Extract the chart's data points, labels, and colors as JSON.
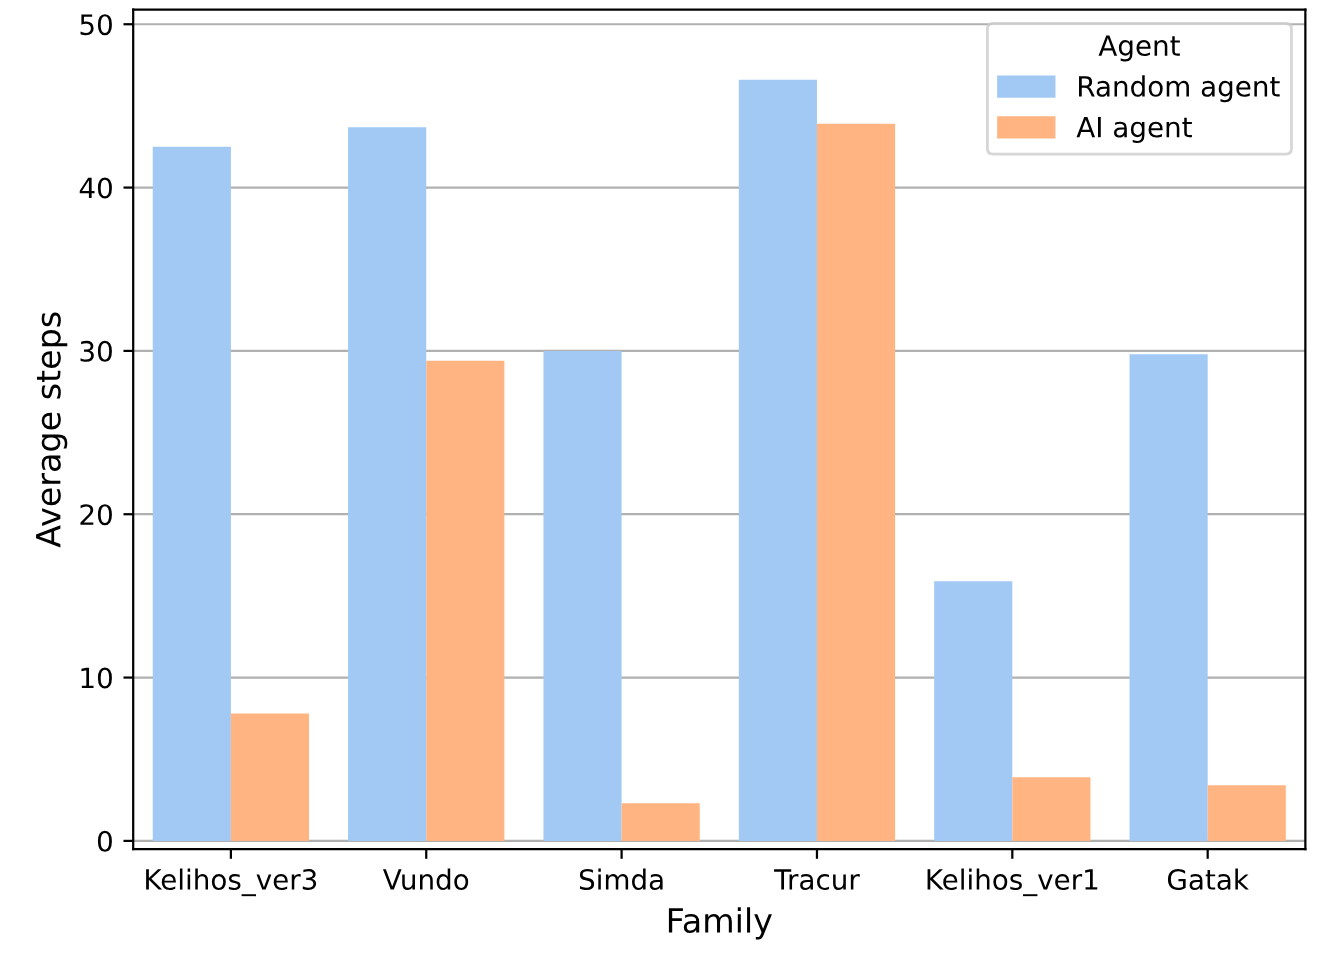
{
  "chart_data": {
    "type": "bar",
    "xlabel": "Family",
    "ylabel": "Average steps",
    "legend_title": "Agent",
    "categories": [
      "Kelihos_ver3",
      "Vundo",
      "Simda",
      "Tracur",
      "Kelihos_ver1",
      "Gatak"
    ],
    "series": [
      {
        "name": "Random agent",
        "color": "#a1c9f4",
        "values": [
          42.5,
          43.7,
          30.0,
          46.6,
          15.9,
          29.8
        ]
      },
      {
        "name": "AI agent",
        "color": "#ffb482",
        "values": [
          7.8,
          29.4,
          2.3,
          43.9,
          3.9,
          3.4
        ]
      }
    ],
    "ylim": [
      -0.5,
      50.9
    ],
    "yticks": [
      0,
      10,
      20,
      30,
      40,
      50
    ],
    "grid": "y",
    "legend": "top right"
  }
}
